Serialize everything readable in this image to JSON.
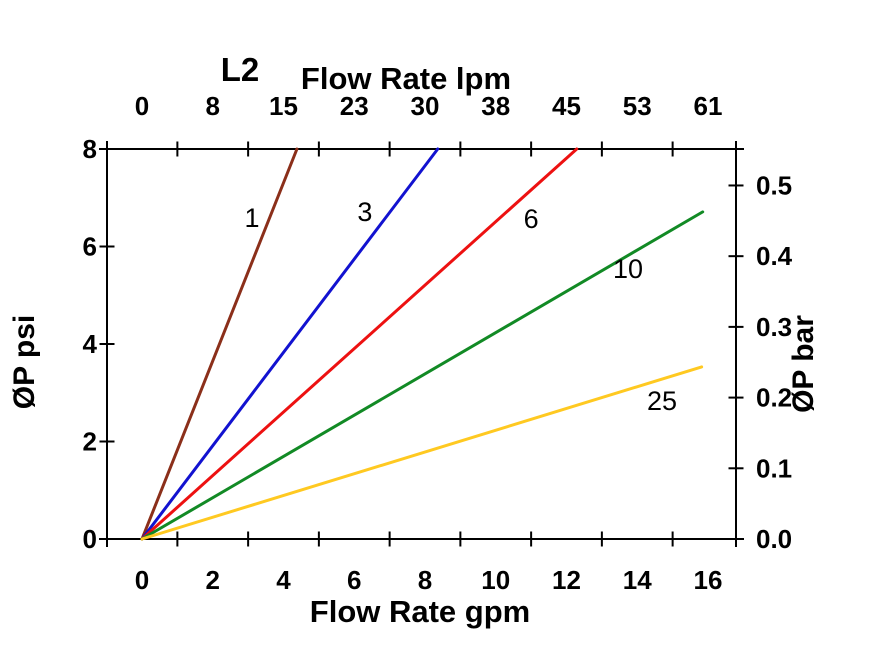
{
  "colors": {
    "background": "#ffffff",
    "axis": "#000000",
    "text": "#000000"
  },
  "chart_data": {
    "type": "line",
    "titles": {
      "corner": "L2",
      "top_axis": "Flow Rate lpm",
      "bottom_axis": "Flow Rate gpm",
      "left_axis": "ØP psi",
      "right_axis": "ØP bar"
    },
    "axes": {
      "top": {
        "unit": "lpm",
        "tick_labels": [
          "0",
          "8",
          "15",
          "23",
          "30",
          "38",
          "45",
          "53",
          "61"
        ],
        "tick_positions_gpm": [
          0,
          2,
          4,
          6,
          8,
          10,
          12,
          14,
          16
        ]
      },
      "bottom": {
        "unit": "gpm",
        "tick_labels": [
          "0",
          "2",
          "4",
          "6",
          "8",
          "10",
          "12",
          "14",
          "16"
        ],
        "tick_positions_gpm": [
          0,
          2,
          4,
          6,
          8,
          10,
          12,
          14,
          16
        ],
        "unlabeled_tick_positions_gpm": [
          1,
          3,
          5,
          7,
          9,
          11,
          13,
          15
        ],
        "range": [
          0,
          16
        ]
      },
      "left": {
        "unit": "psi",
        "tick_labels": [
          "0",
          "2",
          "4",
          "6",
          "8"
        ],
        "tick_values_psi": [
          0,
          2,
          4,
          6,
          8
        ],
        "range": [
          0,
          8
        ]
      },
      "right": {
        "unit": "bar",
        "tick_labels": [
          "0.0",
          "0.1",
          "0.2",
          "0.3",
          "0.4",
          "0.5"
        ],
        "tick_values_bar": [
          0.0,
          0.1,
          0.2,
          0.3,
          0.4,
          0.5
        ],
        "psi_per_bar": 14.5038
      }
    },
    "series": [
      {
        "name": "1",
        "color": "#8B2F1A",
        "points_gpm_psi": [
          [
            0,
            0
          ],
          [
            4.38,
            8.0
          ]
        ],
        "label_pos_gpm_psi": [
          3.11,
          6.58
        ]
      },
      {
        "name": "3",
        "color": "#1212D0",
        "points_gpm_psi": [
          [
            0,
            0
          ],
          [
            8.36,
            8.0
          ]
        ],
        "label_pos_gpm_psi": [
          6.3,
          6.71
        ]
      },
      {
        "name": "6",
        "color": "#ED1111",
        "points_gpm_psi": [
          [
            0,
            0
          ],
          [
            12.29,
            8.0
          ]
        ],
        "label_pos_gpm_psi": [
          11.0,
          6.56
        ]
      },
      {
        "name": "10",
        "color": "#128A25",
        "points_gpm_psi": [
          [
            0,
            0
          ],
          [
            15.85,
            6.71
          ]
        ],
        "label_pos_gpm_psi": [
          13.74,
          5.54
        ]
      },
      {
        "name": "25",
        "color": "#FFC921",
        "points_gpm_psi": [
          [
            0,
            0
          ],
          [
            15.82,
            3.53
          ]
        ],
        "label_pos_gpm_psi": [
          14.7,
          2.83
        ]
      }
    ]
  }
}
